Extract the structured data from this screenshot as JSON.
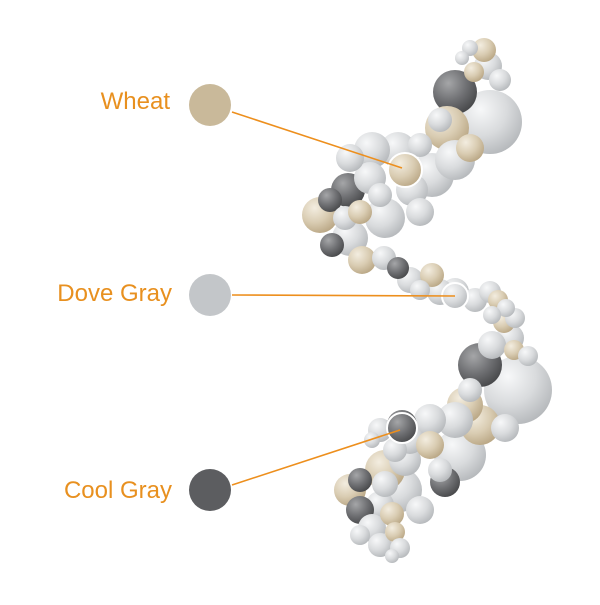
{
  "colors": {
    "label": "#e8901f",
    "leader": "#ed8f1d",
    "wheat": "#c9b99a",
    "dove_gray": "#c3c6c9",
    "cool_gray": "#5c5d60",
    "balloon_light": "#d8dadc",
    "balloon_mid": "#b4b7ba",
    "balloon_dark": "#6f7073"
  },
  "legend": [
    {
      "id": "wheat",
      "label": "Wheat",
      "swatch_color": "#c9b99a"
    },
    {
      "id": "dove-gray",
      "label": "Dove Gray",
      "swatch_color": "#c3c6c9"
    },
    {
      "id": "cool-gray",
      "label": "Cool Gray",
      "swatch_color": "#5c5d60"
    }
  ]
}
